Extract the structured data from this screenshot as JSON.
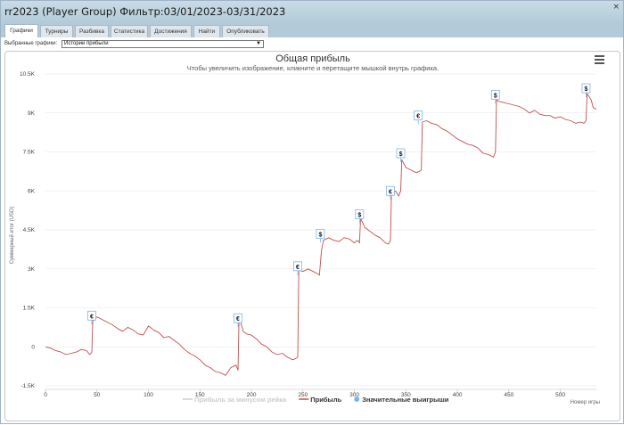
{
  "window": {
    "title": "rr2023 (Player Group) Фильтр:03/01/2023-03/31/2023",
    "close_label": "×"
  },
  "tabs": [
    {
      "label": "Графики",
      "active": true
    },
    {
      "label": "Турниры",
      "active": false
    },
    {
      "label": "Разбивка",
      "active": false
    },
    {
      "label": "Статистика",
      "active": false
    },
    {
      "label": "Достижения",
      "active": false
    },
    {
      "label": "Найти",
      "active": false
    },
    {
      "label": "Опубликовать",
      "active": false
    }
  ],
  "selector": {
    "label": "Выбранные графики:",
    "value": "Истории прибыли"
  },
  "chart_data": {
    "type": "line",
    "title": "Общая прибыль",
    "subtitle": "Чтобы увеличить изображение, кликните и перетащите мышкой внутрь графика.",
    "ylabel": "Суммарный итог (USD)",
    "xlabel": "Номер игры",
    "x_ticks": [
      0,
      50,
      100,
      150,
      200,
      250,
      300,
      350,
      400,
      450,
      500
    ],
    "y_ticks": [
      "-1.5K",
      "0",
      "1.5K",
      "3K",
      "4.5K",
      "6K",
      "7.5K",
      "9K",
      "10.5K"
    ],
    "y_tick_values": [
      -1500,
      0,
      1500,
      3000,
      4500,
      6000,
      7500,
      9000,
      10500
    ],
    "xlim": [
      0,
      535
    ],
    "ylim": [
      -1500,
      10500
    ],
    "grid": true,
    "legend_position": "bottom",
    "legend": [
      {
        "name": "Прибыль за минусом рейка",
        "color": "#cccccc",
        "kind": "line",
        "active": false
      },
      {
        "name": "Прибыль",
        "color": "#c0504d",
        "kind": "line",
        "active": true
      },
      {
        "name": "Значительные выигрыши",
        "color": "#7cb5ec",
        "kind": "dot",
        "active": true
      }
    ],
    "series": [
      {
        "name": "Прибыль",
        "color": "#c0504d",
        "x": [
          0,
          5,
          10,
          15,
          20,
          25,
          30,
          35,
          40,
          43,
          45,
          46,
          50,
          55,
          60,
          65,
          70,
          75,
          80,
          85,
          90,
          95,
          100,
          105,
          110,
          115,
          120,
          125,
          130,
          135,
          140,
          145,
          150,
          155,
          160,
          165,
          170,
          175,
          180,
          185,
          187,
          188,
          192,
          195,
          200,
          205,
          210,
          215,
          220,
          225,
          230,
          235,
          240,
          243,
          245,
          246,
          250,
          255,
          260,
          265,
          266,
          268,
          270,
          275,
          280,
          285,
          290,
          295,
          300,
          303,
          305,
          306,
          310,
          315,
          320,
          325,
          330,
          333,
          335,
          336,
          340,
          343,
          345,
          346,
          350,
          355,
          360,
          363,
          365,
          366,
          370,
          375,
          380,
          385,
          390,
          395,
          400,
          405,
          410,
          415,
          420,
          425,
          430,
          435,
          437,
          438,
          440,
          445,
          450,
          455,
          460,
          465,
          470,
          475,
          480,
          485,
          490,
          495,
          500,
          505,
          510,
          515,
          520,
          523,
          525,
          526,
          530,
          532,
          535
        ],
        "y": [
          0,
          -50,
          -150,
          -200,
          -300,
          -250,
          -200,
          -100,
          -150,
          -300,
          -200,
          1000,
          1150,
          1050,
          950,
          850,
          700,
          600,
          750,
          650,
          500,
          450,
          800,
          650,
          550,
          350,
          400,
          250,
          100,
          -100,
          -250,
          -350,
          -500,
          -700,
          -800,
          -950,
          -1000,
          -1100,
          -800,
          -700,
          -900,
          1150,
          600,
          500,
          450,
          300,
          100,
          0,
          -200,
          -300,
          -250,
          -400,
          -500,
          -450,
          -400,
          2950,
          2900,
          3000,
          2900,
          2800,
          2750,
          3700,
          4100,
          4200,
          4100,
          4050,
          4200,
          4150,
          4000,
          4100,
          4000,
          4950,
          4600,
          4450,
          4300,
          4200,
          4000,
          3950,
          4100,
          5850,
          6000,
          5800,
          6000,
          7200,
          6900,
          6800,
          6700,
          6750,
          6800,
          8650,
          8700,
          8600,
          8550,
          8400,
          8300,
          8150,
          8000,
          7900,
          7800,
          7750,
          7650,
          7450,
          7400,
          7300,
          7500,
          9500,
          9450,
          9400,
          9350,
          9300,
          9250,
          9150,
          9000,
          9100,
          8950,
          8900,
          8900,
          8800,
          8850,
          8750,
          8700,
          8600,
          8650,
          8600,
          8700,
          9750,
          9500,
          9200,
          9150
        ]
      }
    ],
    "markers": [
      {
        "symbol": "€",
        "x": 45,
        "y": 1200
      },
      {
        "symbol": "€",
        "x": 187,
        "y": 1100
      },
      {
        "symbol": "€",
        "x": 245,
        "y": 3100
      },
      {
        "symbol": "$",
        "x": 267,
        "y": 4350
      },
      {
        "symbol": "$",
        "x": 305,
        "y": 5100
      },
      {
        "symbol": "€",
        "x": 335,
        "y": 6000
      },
      {
        "symbol": "$",
        "x": 345,
        "y": 7450
      },
      {
        "symbol": "€",
        "x": 362,
        "y": 8900
      },
      {
        "symbol": "$",
        "x": 437,
        "y": 9700
      },
      {
        "symbol": "$",
        "x": 525,
        "y": 9950
      }
    ]
  }
}
